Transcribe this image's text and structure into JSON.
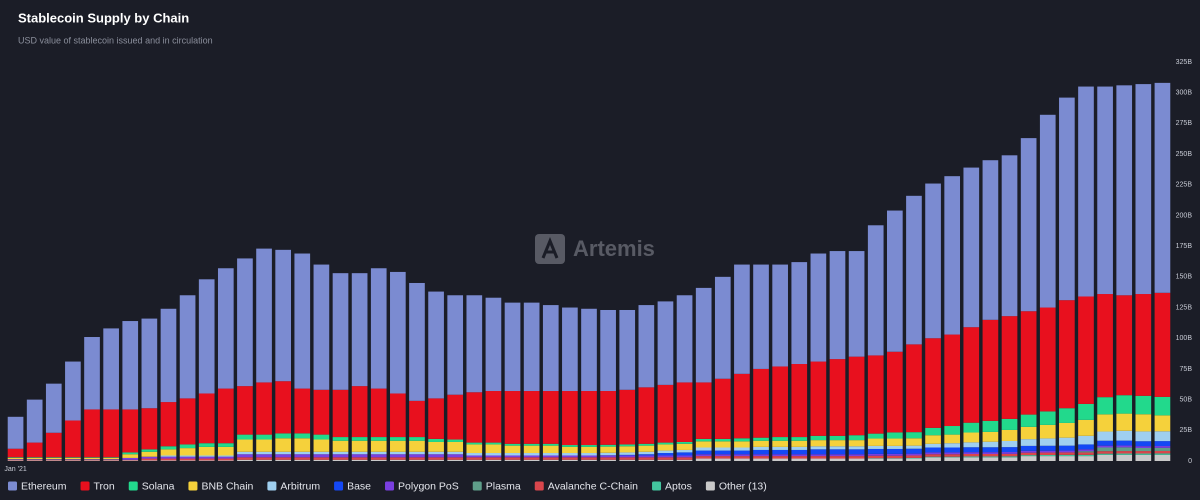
{
  "chart_data": {
    "type": "stacked_bar",
    "title": "Stablecoin Supply by Chain",
    "subtitle": "USD value of stablecoin issued and in circulation",
    "watermark": "Artemis",
    "categories": [
      "Jan '21",
      null,
      null,
      null,
      null,
      null,
      null,
      null,
      null,
      null,
      null,
      null,
      null,
      null,
      null,
      null,
      null,
      null,
      null,
      null,
      null,
      null,
      null,
      null,
      null,
      null,
      null,
      null,
      null,
      null,
      null,
      null,
      null,
      null,
      null,
      null,
      null,
      null,
      null,
      null,
      null,
      null,
      null,
      null,
      null,
      null,
      null,
      null,
      null,
      null,
      null,
      null,
      null,
      null,
      null,
      null,
      null,
      null,
      null,
      null,
      null
    ],
    "ylim": [
      0,
      325
    ],
    "yticks": [
      0,
      {
        "value": 25,
        "label": "25B"
      },
      {
        "value": 50,
        "label": "50B"
      },
      {
        "value": 75,
        "label": "75B"
      },
      {
        "value": 100,
        "label": "100B"
      },
      {
        "value": 125,
        "label": "125B"
      },
      {
        "value": 150,
        "label": "150B"
      },
      {
        "value": 175,
        "label": "175B"
      },
      {
        "value": 200,
        "label": "200B"
      },
      {
        "value": 225,
        "label": "225B"
      },
      {
        "value": 250,
        "label": "250B"
      },
      {
        "value": 275,
        "label": "275B"
      },
      {
        "value": 300,
        "label": "300B"
      },
      {
        "value": 325,
        "label": "325B"
      }
    ],
    "grid": false,
    "legend": "bottom",
    "series": [
      {
        "name": "Ethereum",
        "color": "#7b8bd1",
        "values": [
          26,
          35,
          40,
          48,
          59,
          66,
          72,
          73,
          76,
          84,
          93,
          98,
          104,
          109,
          107,
          110,
          102,
          95,
          92,
          98,
          99,
          96,
          87,
          81,
          79,
          76,
          72,
          72,
          70,
          68,
          67,
          66,
          65,
          67,
          68,
          71,
          77,
          83,
          89,
          85,
          83,
          83,
          88,
          88,
          86,
          106,
          115,
          121,
          126,
          129,
          130,
          130,
          131,
          141,
          157,
          165,
          171,
          169,
          171,
          171,
          171
        ]
      },
      {
        "name": "Tron",
        "color": "#e8101e",
        "values": [
          7,
          12,
          20,
          30,
          39,
          39,
          35,
          33.5,
          36,
          37.5,
          40.5,
          44.5,
          39.5,
          42.5,
          42.5,
          36.5,
          36.5,
          38.5,
          41.5,
          39.5,
          35.5,
          29.5,
          33,
          36.5,
          41,
          42,
          43,
          43,
          43,
          44,
          44,
          43.8,
          44.5,
          46,
          47,
          48.5,
          46,
          49,
          52.5,
          56,
          57.5,
          59.5,
          60.5,
          62.5,
          64,
          63.7,
          65.7,
          71.5,
          73,
          74.5,
          77.8,
          82.3,
          83.7,
          84.2,
          84.6,
          88,
          87.5,
          84,
          81.4,
          82.9,
          84.8
        ]
      },
      {
        "name": "Solana",
        "color": "#22d98c",
        "values": [
          0.5,
          0.5,
          0.5,
          0.5,
          0.5,
          0.5,
          1.5,
          2,
          2.5,
          3,
          3,
          3,
          4,
          4,
          4,
          4,
          4,
          3,
          3,
          3,
          3,
          3,
          2.5,
          2,
          1.5,
          1.5,
          1.5,
          1.5,
          1.5,
          1.5,
          1.5,
          1.5,
          1.5,
          1.5,
          1.5,
          1.5,
          2,
          2,
          2.5,
          2.5,
          3,
          3,
          3.5,
          3.5,
          4,
          4,
          5,
          5,
          6,
          7,
          8,
          9,
          9,
          10,
          11,
          12,
          13,
          14,
          15,
          15,
          15
        ]
      },
      {
        "name": "BNB Chain",
        "color": "#f5d13b",
        "values": [
          1,
          1,
          1,
          1,
          1,
          1,
          3,
          4,
          5,
          6,
          7,
          7,
          10,
          10,
          11,
          11,
          10,
          9,
          9,
          9,
          9,
          9,
          8,
          8,
          7,
          7,
          6,
          6,
          6,
          5,
          5,
          5,
          5,
          5,
          5,
          5,
          5,
          5,
          5,
          5,
          5,
          5,
          5,
          5,
          5,
          6,
          6,
          6,
          7,
          7,
          8,
          8,
          9,
          10,
          11,
          12,
          13,
          14,
          14,
          14,
          13
        ]
      },
      {
        "name": "Arbitrum",
        "color": "#9fcff0",
        "values": [
          0,
          0,
          0,
          0,
          0,
          0,
          0,
          0,
          1,
          1,
          1,
          1,
          2,
          2,
          2,
          2,
          2,
          2,
          2,
          2,
          2,
          2,
          2,
          2,
          2,
          2,
          2,
          2,
          2,
          2,
          2,
          2,
          2,
          2,
          2,
          2,
          2.5,
          2.5,
          2.5,
          2.5,
          2.5,
          2.5,
          2.5,
          2.5,
          2.5,
          2.5,
          2.5,
          2.5,
          3,
          3.5,
          4,
          4.5,
          5,
          5.5,
          6,
          6.5,
          7,
          7.5,
          8,
          8,
          8
        ]
      },
      {
        "name": "Base",
        "color": "#1448f5",
        "values": [
          0,
          0,
          0,
          0,
          0,
          0,
          0,
          0,
          0,
          0,
          0,
          0,
          0,
          0,
          0,
          0,
          0,
          0,
          0,
          0,
          0,
          0,
          0,
          0,
          0,
          0,
          0,
          0,
          0,
          0,
          0,
          0.2,
          0.5,
          1,
          2,
          2.5,
          3,
          3,
          3,
          3.5,
          3.5,
          3.5,
          4,
          4,
          4,
          4,
          4,
          4,
          4,
          4,
          4,
          4,
          4,
          4,
          4,
          4,
          4,
          4,
          4,
          4,
          4
        ]
      },
      {
        "name": "Polygon PoS",
        "color": "#7a3fe0",
        "values": [
          0.5,
          0.5,
          0.5,
          0.5,
          0.5,
          0.5,
          1.5,
          1.5,
          1.5,
          1.5,
          1.5,
          1.5,
          2.5,
          2.5,
          2.5,
          2.5,
          2.5,
          2.5,
          2.5,
          2.5,
          2.5,
          2.5,
          2.5,
          2.5,
          1.5,
          1.5,
          1.5,
          1.5,
          1.5,
          1.5,
          1.5,
          1.5,
          1.5,
          1.5,
          1.5,
          1.5,
          1.5,
          1.5,
          1.5,
          1.5,
          1.5,
          1.5,
          1.5,
          1.5,
          1.5,
          1.5,
          1.5,
          1.5,
          1.5,
          1.5,
          1.5,
          1.5,
          1.5,
          1.5,
          1.5,
          1.5,
          1.5,
          1.5,
          1.5,
          1.5,
          1.5
        ]
      },
      {
        "name": "Plasma",
        "color": "#5f9e8a",
        "values": [
          0,
          0,
          0,
          0,
          0,
          0,
          0,
          0,
          0,
          0,
          0,
          0,
          0,
          0,
          0,
          0,
          0,
          0,
          0,
          0,
          0,
          0,
          0,
          0,
          0,
          0,
          0,
          0,
          0,
          0,
          0,
          0,
          0,
          0,
          0,
          0,
          0,
          0,
          0,
          0,
          0,
          0,
          0,
          0,
          0,
          0,
          0,
          0,
          0,
          0,
          0,
          0,
          0,
          0,
          0,
          0,
          1,
          3,
          3,
          2.5,
          2.5
        ]
      },
      {
        "name": "Avalanche C-Chain",
        "color": "#d9464c",
        "values": [
          0.5,
          0.5,
          0.5,
          0.5,
          0.5,
          0.5,
          0.5,
          1.5,
          1.5,
          1.5,
          1.5,
          1.5,
          2,
          2,
          2,
          2,
          2,
          2,
          2,
          2,
          2,
          2,
          2,
          2,
          2,
          2,
          2,
          2,
          2,
          2,
          2,
          2,
          2,
          2,
          2,
          2,
          2,
          2,
          2,
          2,
          2,
          2,
          2,
          2,
          2,
          2,
          2,
          2,
          2,
          2,
          2,
          2,
          2,
          2,
          2,
          2,
          2,
          2,
          2,
          2,
          2
        ]
      },
      {
        "name": "Aptos",
        "color": "#43c59e",
        "values": [
          0,
          0,
          0,
          0,
          0,
          0,
          0,
          0,
          0,
          0,
          0,
          0,
          0,
          0,
          0,
          0,
          0,
          0,
          0,
          0,
          0,
          0,
          0,
          0,
          0,
          0,
          0,
          0,
          0,
          0,
          0,
          0,
          0,
          0,
          0,
          0,
          0,
          0,
          0,
          0,
          0,
          0,
          0,
          0,
          0,
          0.3,
          0.3,
          0.5,
          0.5,
          0.5,
          0.7,
          0.7,
          0.8,
          0.8,
          0.9,
          1,
          1,
          1,
          1.1,
          1.1,
          1.2
        ]
      },
      {
        "name": "Other (13)",
        "color": "#c9c9c9",
        "values": [
          0.5,
          0.5,
          0.5,
          0.5,
          0.5,
          0.5,
          0.5,
          0.5,
          0.5,
          0.5,
          0.5,
          0.5,
          1,
          1,
          1,
          1,
          1,
          1,
          1,
          1,
          1,
          1,
          1,
          1,
          1,
          1,
          1,
          1,
          1,
          1,
          1,
          1,
          1,
          1,
          1,
          1,
          2,
          2,
          2,
          2,
          2,
          2,
          2,
          2,
          2,
          2,
          2,
          2,
          3,
          3,
          3,
          3,
          3,
          4,
          4,
          4,
          4,
          5,
          5,
          5,
          5
        ]
      }
    ]
  }
}
